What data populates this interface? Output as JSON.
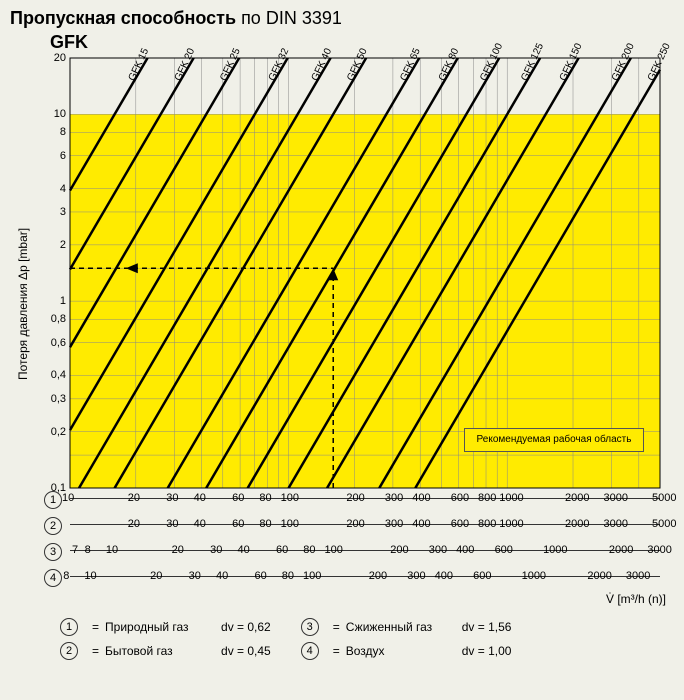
{
  "title": {
    "bold": "Пропускная способность",
    "rest": " по DIN 3391"
  },
  "subtitle": "GFK",
  "ylabel": "Потеря давления Δp [mbar]",
  "xlabel": "V̇ [m³/h (n)]",
  "legend_box": "Рекомендуемая рабочая область",
  "chart": {
    "bg": "#f0f0e8",
    "yellow": "#ffeb00",
    "grid": "#888888",
    "line": "#000000",
    "ylim_log": [
      0.1,
      20
    ],
    "xlim_log": [
      10,
      5000
    ],
    "yticks": [
      0.1,
      0.15,
      0.2,
      0.3,
      0.4,
      0.6,
      0.8,
      1,
      1.5,
      2,
      3,
      4,
      6,
      8,
      10,
      20
    ],
    "ytick_labels": [
      "0,1",
      "",
      "0,2",
      "0,3",
      "0,4",
      "0,6",
      "0,8",
      "1",
      "",
      "2",
      "3",
      "4",
      "6",
      "8",
      "10",
      "20"
    ],
    "xticks": [
      10,
      20,
      30,
      40,
      50,
      60,
      70,
      80,
      90,
      100,
      200,
      300,
      400,
      500,
      600,
      700,
      800,
      900,
      1000,
      2000,
      3000,
      4000,
      5000
    ],
    "xtick_labels": [
      "10",
      "20",
      "30",
      "40",
      "",
      "60",
      "",
      "80",
      "",
      "100",
      "200",
      "300",
      "400",
      "",
      "600",
      "",
      "800",
      "",
      "1000",
      "2000",
      "3000",
      "",
      "5000"
    ],
    "series": [
      {
        "label": "GFK 15",
        "x_at_y10": 16
      },
      {
        "label": "GFK 20",
        "x_at_y10": 26
      },
      {
        "label": "GFK 25",
        "x_at_y10": 42
      },
      {
        "label": "GFK 32",
        "x_at_y10": 70
      },
      {
        "label": "GFK 40",
        "x_at_y10": 110
      },
      {
        "label": "GFK 50",
        "x_at_y10": 160
      },
      {
        "label": "GFK 65",
        "x_at_y10": 280
      },
      {
        "label": "GFK 80",
        "x_at_y10": 420
      },
      {
        "label": "GFK 100",
        "x_at_y10": 650
      },
      {
        "label": "GFK 125",
        "x_at_y10": 1000
      },
      {
        "label": "GFK 150",
        "x_at_y10": 1500
      },
      {
        "label": "GFK 200",
        "x_at_y10": 2600
      },
      {
        "label": "GFK 250",
        "x_at_y10": 3800
      }
    ],
    "slope": 0.5,
    "line_width": 2.5,
    "marker_x": 160,
    "marker_y": 1.5
  },
  "x_scales": [
    {
      "num": "1",
      "ticks": [
        10,
        20,
        30,
        40,
        60,
        80,
        100,
        200,
        300,
        400,
        600,
        800,
        1000,
        2000,
        3000,
        5000
      ]
    },
    {
      "num": "2",
      "ticks": [
        20,
        30,
        40,
        60,
        80,
        100,
        200,
        300,
        400,
        600,
        800,
        1000,
        2000,
        3000,
        5000
      ]
    },
    {
      "num": "3",
      "ticks": [
        7,
        8,
        10,
        20,
        30,
        40,
        60,
        80,
        100,
        200,
        300,
        400,
        600,
        1000,
        2000,
        3000
      ]
    },
    {
      "num": "4",
      "ticks": [
        8,
        10,
        20,
        30,
        40,
        60,
        80,
        100,
        200,
        300,
        400,
        600,
        1000,
        2000,
        3000
      ]
    }
  ],
  "footer": {
    "rows": [
      [
        {
          "num": "1",
          "label": "Природный газ",
          "dv": "dv = 0,62"
        },
        {
          "num": "3",
          "label": "Сжиженный газ",
          "dv": "dv = 1,56"
        }
      ],
      [
        {
          "num": "2",
          "label": "Бытовой газ",
          "dv": "dv = 0,45"
        },
        {
          "num": "4",
          "label": "Воздух",
          "dv": "dv = 1,00"
        }
      ]
    ]
  }
}
